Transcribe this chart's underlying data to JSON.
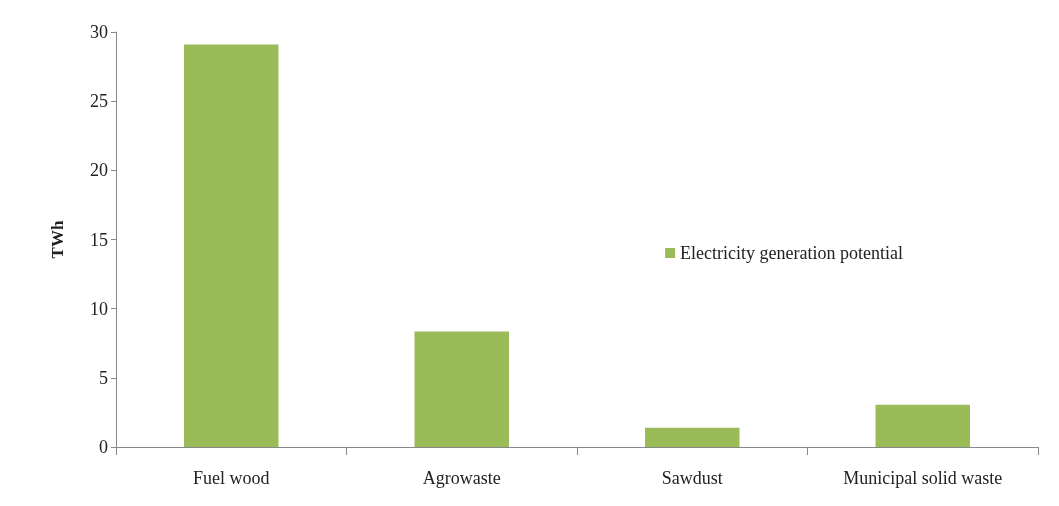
{
  "chart_data": {
    "type": "bar",
    "ylabel": "TWh",
    "categories": [
      "Fuel wood",
      "Agrowaste",
      "Sawdust",
      "Municipal solid waste"
    ],
    "series": [
      {
        "name": "Electricity generation potential",
        "color": "#9bbb59",
        "values": [
          29.1,
          8.35,
          1.4,
          3.05
        ]
      }
    ],
    "ylim": [
      0,
      30
    ],
    "yticks": [
      0,
      5,
      10,
      15,
      20,
      25,
      30
    ],
    "grid": false,
    "legend": "right"
  }
}
